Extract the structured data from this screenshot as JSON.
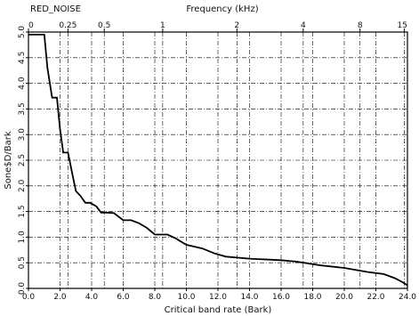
{
  "chart_data": {
    "type": "line",
    "title": "RED_NOISE",
    "xlabel": "Critical band rate (Bark)",
    "ylabel": "Sone$D/Bark",
    "top_axis_label": "Frequency (kHz)",
    "xlim": [
      0,
      24
    ],
    "ylim": [
      0,
      5
    ],
    "x_ticks": [
      {
        "value": 0,
        "label": "0.0"
      },
      {
        "value": 2,
        "label": "2.0"
      },
      {
        "value": 4,
        "label": "4.0"
      },
      {
        "value": 6,
        "label": "6.0"
      },
      {
        "value": 8,
        "label": "8.0"
      },
      {
        "value": 10,
        "label": "10.0"
      },
      {
        "value": 12,
        "label": "12.0"
      },
      {
        "value": 14,
        "label": "14.0"
      },
      {
        "value": 16,
        "label": "16.0"
      },
      {
        "value": 18,
        "label": "18.0"
      },
      {
        "value": 20,
        "label": "20.0"
      },
      {
        "value": 22,
        "label": "22.0"
      },
      {
        "value": 24,
        "label": "24.0"
      }
    ],
    "y_ticks": [
      {
        "value": 0,
        "label": "0.0"
      },
      {
        "value": 0.5,
        "label": "0.5"
      },
      {
        "value": 1,
        "label": "1.0"
      },
      {
        "value": 1.5,
        "label": "1.5"
      },
      {
        "value": 2,
        "label": "2.0"
      },
      {
        "value": 2.5,
        "label": "2.5"
      },
      {
        "value": 3,
        "label": "3.0"
      },
      {
        "value": 3.5,
        "label": "3.5"
      },
      {
        "value": 4,
        "label": "4.0"
      },
      {
        "value": 4.5,
        "label": "4.5"
      },
      {
        "value": 5,
        "label": "5.0"
      }
    ],
    "top_ticks": [
      {
        "bark": 0,
        "label": "0"
      },
      {
        "bark": 2.5,
        "label": "0.25"
      },
      {
        "bark": 4.8,
        "label": "0.5"
      },
      {
        "bark": 8.5,
        "label": "1"
      },
      {
        "bark": 13.2,
        "label": "2"
      },
      {
        "bark": 17.4,
        "label": "4"
      },
      {
        "bark": 21.0,
        "label": "8"
      },
      {
        "bark": 23.8,
        "label": "15"
      }
    ],
    "grid": true,
    "series": [
      {
        "x": [
          0,
          1.0,
          1.2,
          1.5,
          1.8,
          2.0,
          2.2,
          2.5,
          2.8,
          3.0,
          3.3,
          3.6,
          3.9,
          4.3,
          4.6,
          4.9,
          5.4,
          6.0,
          6.5,
          7.0,
          7.5,
          8.0,
          8.8,
          9.3,
          10.0,
          11.0,
          11.8,
          12.5,
          14.0,
          16.0,
          17.0,
          18.5,
          20.0,
          21.5,
          22.5,
          23.2,
          23.7,
          24.0
        ],
        "y": [
          4.95,
          4.95,
          4.3,
          3.72,
          3.72,
          3.1,
          2.65,
          2.65,
          2.2,
          1.9,
          1.8,
          1.67,
          1.67,
          1.6,
          1.48,
          1.48,
          1.47,
          1.33,
          1.33,
          1.27,
          1.18,
          1.05,
          1.05,
          0.98,
          0.85,
          0.78,
          0.68,
          0.62,
          0.58,
          0.55,
          0.52,
          0.45,
          0.4,
          0.32,
          0.28,
          0.2,
          0.12,
          0.06
        ]
      }
    ]
  }
}
